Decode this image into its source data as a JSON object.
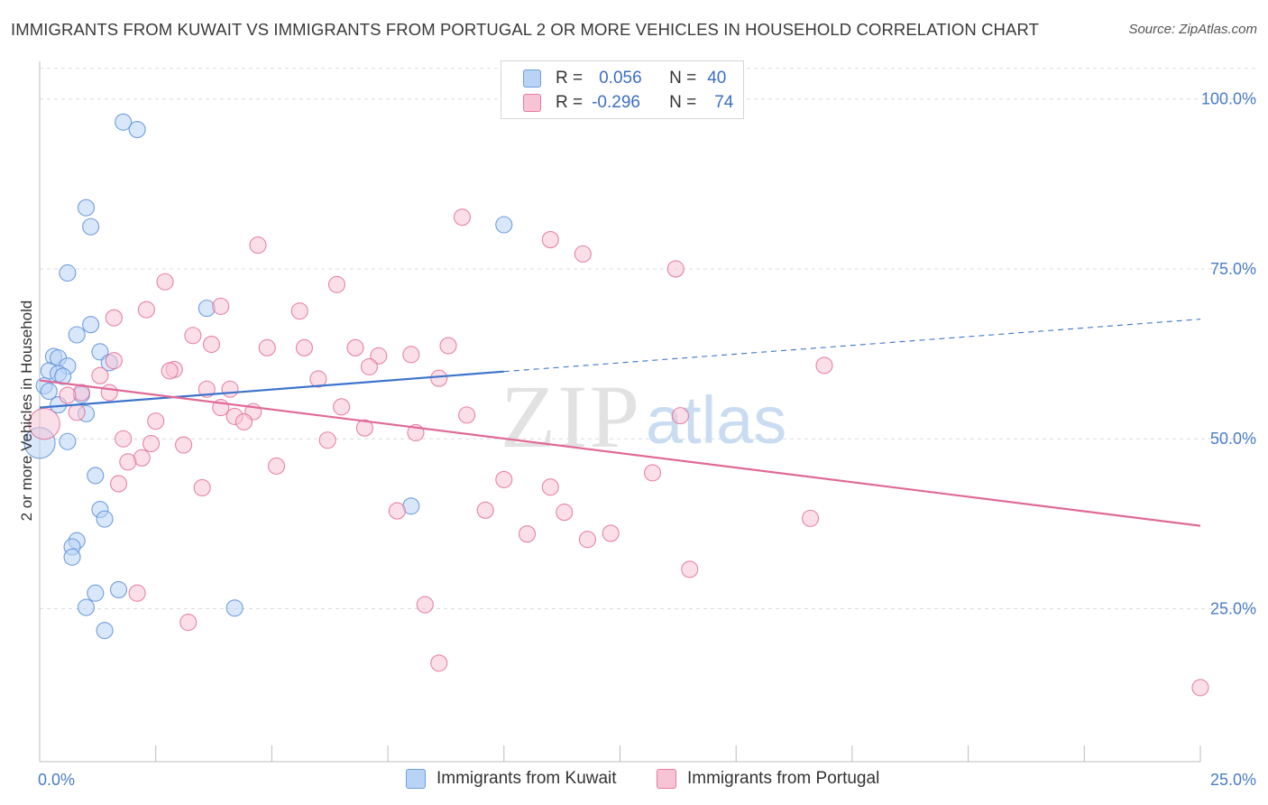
{
  "title": "IMMIGRANTS FROM KUWAIT VS IMMIGRANTS FROM PORTUGAL 2 OR MORE VEHICLES IN HOUSEHOLD CORRELATION CHART",
  "source": "Source: ZipAtlas.com",
  "watermark": {
    "zip": "ZIP",
    "atlas": "atlas"
  },
  "legend": {
    "rows": [
      {
        "r_label": "R =",
        "r_value": "0.056",
        "n_label": "N =",
        "n_value": "40",
        "color": "#6a9fe0",
        "fill": "#b9d3f5"
      },
      {
        "r_label": "R =",
        "r_value": "-0.296",
        "n_label": "N =",
        "n_value": "74",
        "color": "#e87aa0",
        "fill": "#f8c4d5"
      }
    ]
  },
  "chart_data": {
    "type": "scatter",
    "title": "IMMIGRANTS FROM KUWAIT VS IMMIGRANTS FROM PORTUGAL 2 OR MORE VEHICLES IN HOUSEHOLD CORRELATION CHART",
    "xlabel": "",
    "ylabel": "2 or more Vehicles in Household",
    "xlim": [
      0,
      25
    ],
    "ylim": [
      2.5,
      105
    ],
    "x_tick_labels": [
      "0.0%",
      "25.0%"
    ],
    "y_ticks": [
      25,
      50,
      75,
      100
    ],
    "y_tick_labels": [
      "25.0%",
      "50.0%",
      "75.0%",
      "100.0%"
    ],
    "grid": true,
    "series": [
      {
        "name": "Immigrants from Kuwait",
        "color": "#5b8fd8",
        "fill": "#b9d3f5",
        "trend": {
          "x0": 0,
          "y0": 54.6,
          "x1": 10,
          "y1": 59.9,
          "x_dash_end": 25,
          "y_dash_end": 67.6
        },
        "points": [
          {
            "x": 1.8,
            "y": 96.6,
            "s": 1
          },
          {
            "x": 2.1,
            "y": 95.5,
            "s": 1
          },
          {
            "x": 1.0,
            "y": 84.0,
            "s": 1
          },
          {
            "x": 1.1,
            "y": 81.2,
            "s": 1
          },
          {
            "x": 10.0,
            "y": 81.5,
            "s": 1
          },
          {
            "x": 0.6,
            "y": 74.4,
            "s": 1
          },
          {
            "x": 3.6,
            "y": 69.2,
            "s": 1
          },
          {
            "x": 1.1,
            "y": 66.8,
            "s": 1
          },
          {
            "x": 0.8,
            "y": 65.3,
            "s": 1
          },
          {
            "x": 1.3,
            "y": 62.8,
            "s": 1
          },
          {
            "x": 0.3,
            "y": 62.1,
            "s": 1
          },
          {
            "x": 0.4,
            "y": 61.9,
            "s": 1
          },
          {
            "x": 1.5,
            "y": 61.2,
            "s": 1
          },
          {
            "x": 0.6,
            "y": 60.7,
            "s": 1
          },
          {
            "x": 0.2,
            "y": 60.0,
            "s": 1
          },
          {
            "x": 0.4,
            "y": 59.6,
            "s": 1
          },
          {
            "x": 0.5,
            "y": 59.2,
            "s": 1
          },
          {
            "x": 0.1,
            "y": 57.8,
            "s": 1
          },
          {
            "x": 0.2,
            "y": 57.0,
            "s": 1
          },
          {
            "x": 0.9,
            "y": 56.5,
            "s": 1
          },
          {
            "x": 0.4,
            "y": 55.0,
            "s": 1
          },
          {
            "x": 1.0,
            "y": 53.7,
            "s": 1
          },
          {
            "x": 0.6,
            "y": 49.6,
            "s": 1
          },
          {
            "x": 0.0,
            "y": 49.4,
            "s": 1.9
          },
          {
            "x": 1.2,
            "y": 44.6,
            "s": 1
          },
          {
            "x": 8.0,
            "y": 40.1,
            "s": 1
          },
          {
            "x": 1.3,
            "y": 39.6,
            "s": 1
          },
          {
            "x": 1.4,
            "y": 38.2,
            "s": 1
          },
          {
            "x": 0.8,
            "y": 35.0,
            "s": 1
          },
          {
            "x": 0.7,
            "y": 34.1,
            "s": 1
          },
          {
            "x": 0.7,
            "y": 32.6,
            "s": 1
          },
          {
            "x": 1.7,
            "y": 27.8,
            "s": 1
          },
          {
            "x": 1.2,
            "y": 27.3,
            "s": 1
          },
          {
            "x": 1.0,
            "y": 25.2,
            "s": 1
          },
          {
            "x": 4.2,
            "y": 25.1,
            "s": 1
          },
          {
            "x": 1.4,
            "y": 21.8,
            "s": 1
          }
        ]
      },
      {
        "name": "Immigrants from Portugal",
        "color": "#e4709a",
        "fill": "#f8c4d5",
        "trend": {
          "x0": 0,
          "y0": 58.6,
          "x1": 25,
          "y1": 37.2
        },
        "points": [
          {
            "x": 9.1,
            "y": 82.6,
            "s": 1
          },
          {
            "x": 11.0,
            "y": 79.3,
            "s": 1
          },
          {
            "x": 4.7,
            "y": 78.5,
            "s": 1
          },
          {
            "x": 11.7,
            "y": 77.2,
            "s": 1
          },
          {
            "x": 13.7,
            "y": 75.0,
            "s": 1
          },
          {
            "x": 2.7,
            "y": 73.1,
            "s": 1
          },
          {
            "x": 6.4,
            "y": 72.7,
            "s": 1
          },
          {
            "x": 3.9,
            "y": 69.5,
            "s": 1
          },
          {
            "x": 2.3,
            "y": 69.0,
            "s": 1
          },
          {
            "x": 5.6,
            "y": 68.8,
            "s": 1
          },
          {
            "x": 1.6,
            "y": 67.8,
            "s": 1
          },
          {
            "x": 3.3,
            "y": 65.2,
            "s": 1
          },
          {
            "x": 3.7,
            "y": 63.9,
            "s": 1
          },
          {
            "x": 8.8,
            "y": 63.7,
            "s": 1
          },
          {
            "x": 4.9,
            "y": 63.4,
            "s": 1
          },
          {
            "x": 5.7,
            "y": 63.4,
            "s": 1
          },
          {
            "x": 6.8,
            "y": 63.4,
            "s": 1
          },
          {
            "x": 8.0,
            "y": 62.4,
            "s": 1
          },
          {
            "x": 7.3,
            "y": 62.2,
            "s": 1
          },
          {
            "x": 1.6,
            "y": 61.5,
            "s": 1
          },
          {
            "x": 16.9,
            "y": 60.8,
            "s": 1
          },
          {
            "x": 7.1,
            "y": 60.6,
            "s": 1
          },
          {
            "x": 2.9,
            "y": 60.2,
            "s": 1
          },
          {
            "x": 2.8,
            "y": 60.0,
            "s": 1
          },
          {
            "x": 1.3,
            "y": 59.3,
            "s": 1
          },
          {
            "x": 6.0,
            "y": 58.8,
            "s": 1
          },
          {
            "x": 8.6,
            "y": 58.9,
            "s": 1
          },
          {
            "x": 3.6,
            "y": 57.3,
            "s": 1
          },
          {
            "x": 4.1,
            "y": 57.3,
            "s": 1
          },
          {
            "x": 0.9,
            "y": 56.8,
            "s": 1
          },
          {
            "x": 1.5,
            "y": 56.8,
            "s": 1
          },
          {
            "x": 0.6,
            "y": 56.4,
            "s": 1
          },
          {
            "x": 3.9,
            "y": 54.6,
            "s": 1
          },
          {
            "x": 6.5,
            "y": 54.7,
            "s": 1
          },
          {
            "x": 4.6,
            "y": 54.0,
            "s": 1
          },
          {
            "x": 0.8,
            "y": 53.9,
            "s": 1
          },
          {
            "x": 9.2,
            "y": 53.5,
            "s": 1
          },
          {
            "x": 13.8,
            "y": 53.4,
            "s": 1
          },
          {
            "x": 4.2,
            "y": 53.3,
            "s": 1
          },
          {
            "x": 2.5,
            "y": 52.6,
            "s": 1
          },
          {
            "x": 4.4,
            "y": 52.5,
            "s": 1
          },
          {
            "x": 0.1,
            "y": 52.2,
            "s": 1.9
          },
          {
            "x": 7.0,
            "y": 51.6,
            "s": 1
          },
          {
            "x": 8.1,
            "y": 50.9,
            "s": 1
          },
          {
            "x": 1.8,
            "y": 50.0,
            "s": 1
          },
          {
            "x": 6.2,
            "y": 49.8,
            "s": 1
          },
          {
            "x": 2.4,
            "y": 49.3,
            "s": 1
          },
          {
            "x": 3.1,
            "y": 49.1,
            "s": 1
          },
          {
            "x": 2.2,
            "y": 47.2,
            "s": 1
          },
          {
            "x": 1.9,
            "y": 46.6,
            "s": 1
          },
          {
            "x": 5.1,
            "y": 46.0,
            "s": 1
          },
          {
            "x": 13.2,
            "y": 45.0,
            "s": 1
          },
          {
            "x": 10.0,
            "y": 44.0,
            "s": 1
          },
          {
            "x": 1.7,
            "y": 43.4,
            "s": 1
          },
          {
            "x": 3.5,
            "y": 42.8,
            "s": 1
          },
          {
            "x": 11.0,
            "y": 42.9,
            "s": 1
          },
          {
            "x": 7.7,
            "y": 39.4,
            "s": 1
          },
          {
            "x": 9.6,
            "y": 39.5,
            "s": 1
          },
          {
            "x": 11.3,
            "y": 39.2,
            "s": 1
          },
          {
            "x": 16.6,
            "y": 38.3,
            "s": 1
          },
          {
            "x": 10.5,
            "y": 36.0,
            "s": 1
          },
          {
            "x": 12.3,
            "y": 36.1,
            "s": 1
          },
          {
            "x": 11.8,
            "y": 35.2,
            "s": 1
          },
          {
            "x": 14.0,
            "y": 30.8,
            "s": 1
          },
          {
            "x": 2.1,
            "y": 27.3,
            "s": 1
          },
          {
            "x": 8.3,
            "y": 25.6,
            "s": 1
          },
          {
            "x": 3.2,
            "y": 23.0,
            "s": 1
          },
          {
            "x": 8.6,
            "y": 17.0,
            "s": 1
          },
          {
            "x": 25.0,
            "y": 13.4,
            "s": 1
          }
        ]
      }
    ]
  }
}
